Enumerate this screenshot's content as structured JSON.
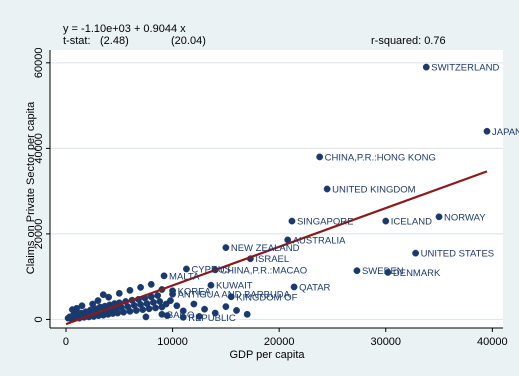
{
  "chart_data": {
    "type": "scatter",
    "xlabel": "GDP per capita",
    "ylabel": "Claims on Private Sector per capita",
    "xlim": [
      -1500,
      41000
    ],
    "ylim": [
      -2000,
      63000
    ],
    "x_ticks": [
      0,
      10000,
      20000,
      30000,
      40000
    ],
    "y_ticks": [
      0,
      20000,
      40000,
      60000
    ],
    "x_tick_labels": [
      "0",
      "10000",
      "20000",
      "30000",
      "40000"
    ],
    "y_tick_labels": [
      "0",
      "20000",
      "40000",
      "60000"
    ],
    "grid": "horizontal",
    "regression": {
      "intercept": -1100,
      "slope": 0.9044,
      "equation": "y = -1.10e+03 + 0.9044 x",
      "tstat_prefix": "t-stat:",
      "tstat_intercept": "(2.48)",
      "tstat_slope": "(20.04)",
      "rsquared_text": "r-squared: 0.76",
      "x_range": [
        0,
        39500
      ]
    },
    "labeled_points": [
      {
        "label": "SWITZERLAND",
        "x": 33800,
        "y": 59000
      },
      {
        "label": "JAPAN",
        "x": 39500,
        "y": 44000
      },
      {
        "label": "CHINA,P.R.:HONG KONG",
        "x": 23800,
        "y": 38000
      },
      {
        "label": "UNITED KINGDOM",
        "x": 24500,
        "y": 30500
      },
      {
        "label": "SINGAPORE",
        "x": 21200,
        "y": 23000
      },
      {
        "label": "ICELAND",
        "x": 30000,
        "y": 23000
      },
      {
        "label": "NORWAY",
        "x": 35000,
        "y": 24000
      },
      {
        "label": "AUSTRALIA",
        "x": 20800,
        "y": 18600
      },
      {
        "label": "NEW ZEALAND",
        "x": 15000,
        "y": 16800
      },
      {
        "label": "UNITED STATES",
        "x": 32800,
        "y": 15500
      },
      {
        "label": "ISRAEL",
        "x": 17300,
        "y": 14200
      },
      {
        "label": "SWEDEN",
        "x": 27300,
        "y": 11400
      },
      {
        "label": "DENMARK",
        "x": 30200,
        "y": 11000
      },
      {
        "label": "CHINA,P.R.:MACAO",
        "x": 14000,
        "y": 11600
      },
      {
        "label": "CYPRUS",
        "x": 11300,
        "y": 11800
      },
      {
        "label": "MALTA",
        "x": 9200,
        "y": 10200
      },
      {
        "label": "KUWAIT",
        "x": 13600,
        "y": 8000
      },
      {
        "label": "QATAR",
        "x": 21400,
        "y": 7600
      },
      {
        "label": "KOREA",
        "x": 10000,
        "y": 6700
      },
      {
        "label": "ANTIGUA AND BARBUDA",
        "x": 10000,
        "y": 5900
      },
      {
        "label": "KINGDOM OF",
        "x": 15500,
        "y": 5300
      },
      {
        "label": "REPUBLIC",
        "x": 11000,
        "y": 500
      },
      {
        "label": "BAGO",
        "x": 9000,
        "y": 1200
      }
    ],
    "unlabeled_points": [
      [
        200,
        300
      ],
      [
        350,
        600
      ],
      [
        500,
        150
      ],
      [
        650,
        900
      ],
      [
        800,
        400
      ],
      [
        950,
        1200
      ],
      [
        1100,
        700
      ],
      [
        1250,
        300
      ],
      [
        1400,
        1500
      ],
      [
        1550,
        900
      ],
      [
        1700,
        500
      ],
      [
        1850,
        1800
      ],
      [
        2000,
        1100
      ],
      [
        2150,
        600
      ],
      [
        2300,
        2200
      ],
      [
        2450,
        1300
      ],
      [
        2600,
        700
      ],
      [
        2750,
        2500
      ],
      [
        2900,
        1600
      ],
      [
        3050,
        900
      ],
      [
        3200,
        2900
      ],
      [
        3350,
        1800
      ],
      [
        3500,
        1000
      ],
      [
        3650,
        3100
      ],
      [
        3800,
        2100
      ],
      [
        3950,
        1200
      ],
      [
        4100,
        3400
      ],
      [
        4250,
        2400
      ],
      [
        4400,
        1400
      ],
      [
        4550,
        3700
      ],
      [
        4700,
        2600
      ],
      [
        4850,
        1500
      ],
      [
        5000,
        3900
      ],
      [
        5200,
        2800
      ],
      [
        5400,
        1700
      ],
      [
        5600,
        4200
      ],
      [
        5800,
        3000
      ],
      [
        6000,
        1900
      ],
      [
        6200,
        4500
      ],
      [
        6400,
        3300
      ],
      [
        6600,
        2100
      ],
      [
        6800,
        4700
      ],
      [
        7000,
        3500
      ],
      [
        7200,
        2300
      ],
      [
        7400,
        5000
      ],
      [
        7600,
        3700
      ],
      [
        7800,
        2500
      ],
      [
        8000,
        5300
      ],
      [
        8200,
        4000
      ],
      [
        8400,
        2700
      ],
      [
        8600,
        5600
      ],
      [
        8800,
        4200
      ],
      [
        9000,
        2900
      ],
      [
        9400,
        3600
      ],
      [
        9800,
        4400
      ],
      [
        10400,
        3200
      ],
      [
        11000,
        2000
      ],
      [
        12000,
        3600
      ],
      [
        13000,
        2400
      ],
      [
        14000,
        1500
      ],
      [
        15000,
        3000
      ],
      [
        16000,
        2100
      ],
      [
        17000,
        1200
      ],
      [
        600,
        2300
      ],
      [
        1000,
        2600
      ],
      [
        1500,
        3200
      ],
      [
        2500,
        3600
      ],
      [
        3000,
        4400
      ],
      [
        4000,
        5200
      ],
      [
        5000,
        6100
      ],
      [
        6000,
        6800
      ],
      [
        7000,
        7500
      ],
      [
        8000,
        8200
      ],
      [
        9000,
        7000
      ],
      [
        7500,
        600
      ],
      [
        9500,
        900
      ],
      [
        12500,
        700
      ],
      [
        3500,
        5800
      ]
    ]
  }
}
